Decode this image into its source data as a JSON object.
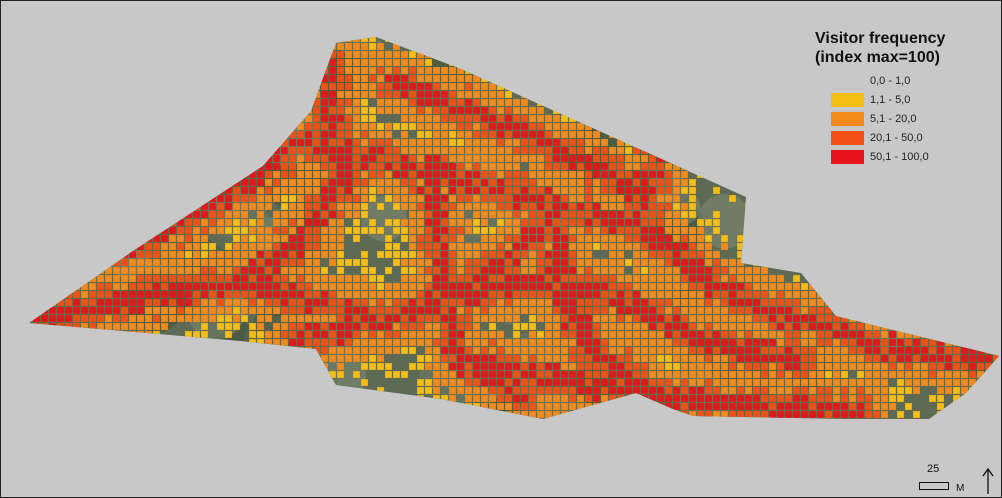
{
  "legend": {
    "title_line1": "Visitor frequency",
    "title_line2": "(index max=100)",
    "items": [
      {
        "label": "0,0 - 1,0",
        "color": "transparent"
      },
      {
        "label": "1,1 - 5,0",
        "color": "#f5be14"
      },
      {
        "label": "5,1 - 20,0",
        "color": "#f58a1c"
      },
      {
        "label": "20,1 - 50,0",
        "color": "#f24f16"
      },
      {
        "label": "50,1 - 100,0",
        "color": "#e8141c"
      }
    ]
  },
  "scale_bar": {
    "value": "25",
    "unit": "M"
  },
  "north_arrow": {
    "icon": "north-arrow-icon"
  },
  "map": {
    "background_color": "#c8c8c8",
    "imagery_colors": [
      "#5c6a55",
      "#6e7c68",
      "#4a5a3c",
      "#7f8a74",
      "#3d4d33"
    ]
  }
}
